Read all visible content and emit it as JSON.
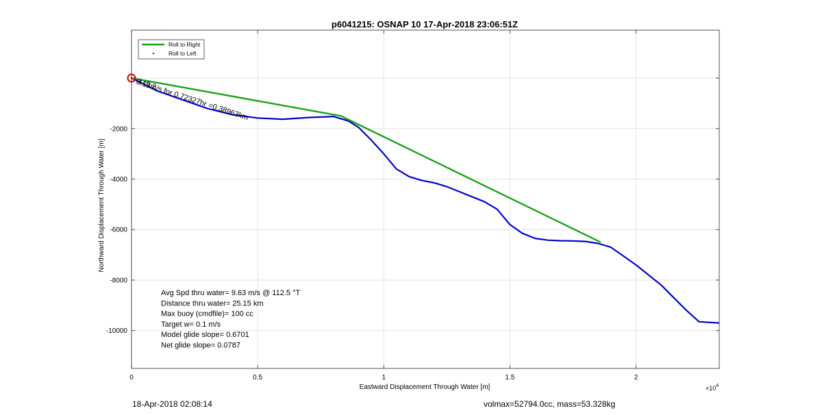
{
  "figure": {
    "footer_left": "18-Apr-2018 02:08:14",
    "footer_right": "volmax=52794.0cc, mass=53.328kg"
  },
  "chart_data": {
    "type": "line",
    "title": "p6041215: OSNAP 10 17-Apr-2018 23:06:51Z",
    "xlabel": "Eastward Displacement Through Water [m]",
    "ylabel": "Northward Displacement Through Water [m]",
    "x_exponent_label": "×10",
    "x_exponent_power": "4",
    "xlim": [
      0,
      23300
    ],
    "ylim": [
      -11500,
      1900
    ],
    "xticks": [
      0,
      5000,
      10000,
      15000,
      20000
    ],
    "xtick_labels": [
      "0",
      "0.5",
      "1",
      "1.5",
      "2"
    ],
    "yticks": [
      -10000,
      -8000,
      -6000,
      -4000,
      -2000,
      0
    ],
    "ytick_labels": [
      "-10000",
      "-8000",
      "-6000",
      "-4000",
      "-2000",
      ""
    ],
    "grid": true,
    "legend_position": "top-left",
    "legend": [
      "Roll to Right",
      "Roll to Left"
    ],
    "colors": {
      "roll_right": "#1aa11a",
      "track": "#0000cc",
      "roll_left": "#cc0000",
      "start_marker": "#cc0000"
    },
    "series": [
      {
        "name": "Roll to Right",
        "x": [
          0,
          8300,
          18600
        ],
        "y": [
          0,
          -1500,
          -6500
        ]
      },
      {
        "name": "track",
        "x": [
          0,
          1000,
          2000,
          3000,
          4000,
          5000,
          6000,
          7000,
          8000,
          8600,
          9000,
          9500,
          10000,
          10500,
          11000,
          11500,
          12000,
          12500,
          13000,
          13500,
          14000,
          14500,
          15000,
          15500,
          16000,
          16500,
          17000,
          17500,
          18000,
          18500,
          19000,
          19500,
          20000,
          20500,
          21000,
          21500,
          22000,
          22500,
          23300
        ],
        "y": [
          0,
          -500,
          -850,
          -1200,
          -1450,
          -1580,
          -1630,
          -1560,
          -1520,
          -1700,
          -1950,
          -2450,
          -3000,
          -3600,
          -3900,
          -4050,
          -4150,
          -4300,
          -4500,
          -4700,
          -4900,
          -5200,
          -5800,
          -6150,
          -6350,
          -6420,
          -6440,
          -6450,
          -6470,
          -6550,
          -6700,
          -7050,
          -7400,
          -7800,
          -8200,
          -8700,
          -9200,
          -9650,
          -9700
        ]
      },
      {
        "name": "Roll to Left",
        "x": [
          0
        ],
        "y": [
          0
        ]
      }
    ],
    "annotations": {
      "drift_label": "0.13m/s for 0.72327hr =0.38963km",
      "drift_overlap": "449.2",
      "drift_angle_deg": 18,
      "drift_x": 200,
      "drift_y": -120,
      "start_x": 0,
      "start_y": 0
    },
    "stats": [
      "Avg Spd thru water=  9.63 m/s @ 112.5 °T",
      "Distance thru water= 25.15 km",
      "Max buoy (cmdfile)= 100 cc",
      "Target w= 0.1 m/s",
      "Model glide slope= 0.6701",
      "Net glide slope= 0.0787"
    ]
  }
}
